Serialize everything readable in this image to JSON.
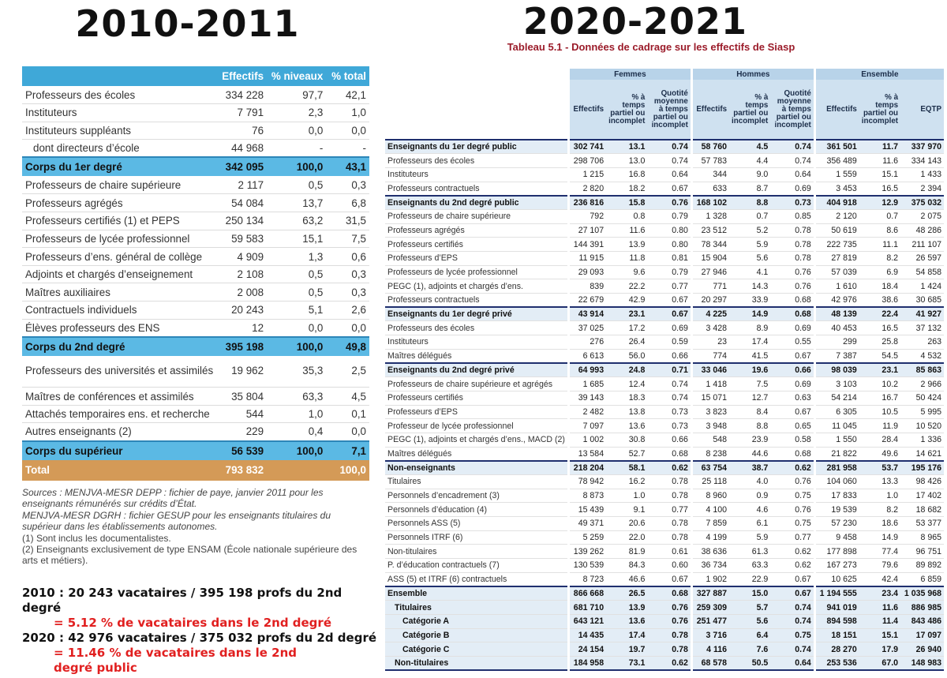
{
  "left": {
    "title": "2010-2011",
    "headers": [
      "",
      "Effectifs",
      "% niveaux",
      "% total"
    ],
    "rows": [
      {
        "label": "Professeurs des écoles",
        "effectifs": "334 228",
        "niveaux": "97,7",
        "total": "42,1",
        "kind": "row"
      },
      {
        "label": "Instituteurs",
        "effectifs": "7 791",
        "niveaux": "2,3",
        "total": "1,0",
        "kind": "row"
      },
      {
        "label": "Instituteurs suppléants",
        "effectifs": "76",
        "niveaux": "0,0",
        "total": "0,0",
        "kind": "row"
      },
      {
        "label": "dont directeurs d’école",
        "effectifs": "44 968",
        "niveaux": "-",
        "total": "-",
        "kind": "indent"
      },
      {
        "label": "Corps du 1er degré",
        "effectifs": "342 095",
        "niveaux": "100,0",
        "total": "43,1",
        "kind": "corps"
      },
      {
        "label": "Professeurs de chaire supérieure",
        "effectifs": "2 117",
        "niveaux": "0,5",
        "total": "0,3",
        "kind": "row"
      },
      {
        "label": "Professeurs agrégés",
        "effectifs": "54 084",
        "niveaux": "13,7",
        "total": "6,8",
        "kind": "row"
      },
      {
        "label": "Professeurs certifiés (1) et PEPS",
        "effectifs": "250 134",
        "niveaux": "63,2",
        "total": "31,5",
        "kind": "row"
      },
      {
        "label": "Professeurs de lycée professionnel",
        "effectifs": "59 583",
        "niveaux": "15,1",
        "total": "7,5",
        "kind": "row"
      },
      {
        "label": "Professeurs d’ens. général de collège",
        "effectifs": "4 909",
        "niveaux": "1,3",
        "total": "0,6",
        "kind": "row"
      },
      {
        "label": "Adjoints et chargés d’enseignement",
        "effectifs": "2 108",
        "niveaux": "0,5",
        "total": "0,3",
        "kind": "row"
      },
      {
        "label": "Maîtres auxiliaires",
        "effectifs": "2 008",
        "niveaux": "0,5",
        "total": "0,3",
        "kind": "row"
      },
      {
        "label": "Contractuels individuels",
        "effectifs": "20 243",
        "niveaux": "5,1",
        "total": "2,6",
        "kind": "row"
      },
      {
        "label": "Élèves professeurs des ENS",
        "effectifs": "12",
        "niveaux": "0,0",
        "total": "0,0",
        "kind": "row"
      },
      {
        "label": "Corps du 2nd degré",
        "effectifs": "395 198",
        "niveaux": "100,0",
        "total": "49,8",
        "kind": "corps"
      },
      {
        "label": "Professeurs des universités et assimilés",
        "effectifs": "19 962",
        "niveaux": "35,3",
        "total": "2,5",
        "kind": "tall"
      },
      {
        "label": "Maîtres de conférences et assimilés",
        "effectifs": "35 804",
        "niveaux": "63,3",
        "total": "4,5",
        "kind": "row"
      },
      {
        "label": "Attachés temporaires ens. et recherche",
        "effectifs": "544",
        "niveaux": "1,0",
        "total": "0,1",
        "kind": "row"
      },
      {
        "label": "Autres enseignants (2)",
        "effectifs": "229",
        "niveaux": "0,4",
        "total": "0,0",
        "kind": "row"
      },
      {
        "label": "Corps du supérieur",
        "effectifs": "56 539",
        "niveaux": "100,0",
        "total": "7,1",
        "kind": "corps"
      },
      {
        "label": "Total",
        "effectifs": "793 832",
        "niveaux": "",
        "total": "100,0",
        "kind": "total"
      }
    ],
    "notes": [
      {
        "text": "Sources : MENJVA-MESR DEPP : fichier de paye, janvier 2011 pour les enseignants rémunérés sur crédits d’État.",
        "italic": true
      },
      {
        "text": "MENJVA-MESR DGRH : fichier GESUP pour les enseignants titulaires du supérieur dans les établissements autonomes.",
        "italic": true
      },
      {
        "text": "(1) Sont inclus les documentalistes.",
        "italic": false
      },
      {
        "text": "(2) Enseignants exclusivement de type ENSAM (École nationale supérieure des arts et métiers).",
        "italic": false
      }
    ]
  },
  "calc": {
    "line1": "2010 : 20 243 vacataires / 395 198 profs du 2nd degré",
    "line2": "= 5.12 % de vacataires dans le 2nd degré",
    "line3": "2020 : 42 976 vacataires / 375 032 profs du 2d degré",
    "line4": "= 11.46 % de vacataires dans le 2nd",
    "line5": "degré public"
  },
  "right": {
    "title": "2020-2021",
    "caption": "Tableau 5.1 - Données de cadrage sur les effectifs de Siasp",
    "groups": [
      "Femmes",
      "Hommes",
      "Ensemble"
    ],
    "subheaders": [
      "Effectifs",
      "% à temps partiel ou incomplet",
      "Quotité moyenne à temps partiel ou incomplet",
      "Effectifs",
      "% à temps partiel ou incomplet",
      "Quotité moyenne à temps partiel ou incomplet",
      "Effectifs",
      "% à temps partiel ou incomplet",
      "EQTP"
    ],
    "rows": [
      {
        "label": "Enseignants du 1er degré public",
        "v": [
          "302 741",
          "13.1",
          "0.74",
          "58 760",
          "4.5",
          "0.74",
          "361 501",
          "11.7",
          "337 970"
        ],
        "kind": "sec"
      },
      {
        "label": "Professeurs des écoles",
        "v": [
          "298 706",
          "13.0",
          "0.74",
          "57 783",
          "4.4",
          "0.74",
          "356 489",
          "11.6",
          "334 143"
        ],
        "kind": "row"
      },
      {
        "label": "Instituteurs",
        "v": [
          "1 215",
          "16.8",
          "0.64",
          "344",
          "9.0",
          "0.64",
          "1 559",
          "15.1",
          "1 433"
        ],
        "kind": "row"
      },
      {
        "label": "Professeurs contractuels",
        "v": [
          "2 820",
          "18.2",
          "0.67",
          "633",
          "8.7",
          "0.69",
          "3 453",
          "16.5",
          "2 394"
        ],
        "kind": "row"
      },
      {
        "label": "Enseignants du 2nd degré public",
        "v": [
          "236 816",
          "15.8",
          "0.76",
          "168 102",
          "8.8",
          "0.73",
          "404 918",
          "12.9",
          "375 032"
        ],
        "kind": "sec"
      },
      {
        "label": "Professeurs de chaire supérieure",
        "v": [
          "792",
          "0.8",
          "0.79",
          "1 328",
          "0.7",
          "0.85",
          "2 120",
          "0.7",
          "2 075"
        ],
        "kind": "row"
      },
      {
        "label": "Professeurs agrégés",
        "v": [
          "27 107",
          "11.6",
          "0.80",
          "23 512",
          "5.2",
          "0.78",
          "50 619",
          "8.6",
          "48 286"
        ],
        "kind": "row"
      },
      {
        "label": "Professeurs certifiés",
        "v": [
          "144 391",
          "13.9",
          "0.80",
          "78 344",
          "5.9",
          "0.78",
          "222 735",
          "11.1",
          "211 107"
        ],
        "kind": "row"
      },
      {
        "label": "Professeurs d’EPS",
        "v": [
          "11 915",
          "11.8",
          "0.81",
          "15 904",
          "5.6",
          "0.78",
          "27 819",
          "8.2",
          "26 597"
        ],
        "kind": "row"
      },
      {
        "label": "Professeurs de lycée professionnel",
        "v": [
          "29 093",
          "9.6",
          "0.79",
          "27 946",
          "4.1",
          "0.76",
          "57 039",
          "6.9",
          "54 858"
        ],
        "kind": "row"
      },
      {
        "label": "PEGC (1), adjoints et chargés d’ens.",
        "v": [
          "839",
          "22.2",
          "0.77",
          "771",
          "14.3",
          "0.76",
          "1 610",
          "18.4",
          "1 424"
        ],
        "kind": "row"
      },
      {
        "label": "Professeurs contractuels",
        "v": [
          "22 679",
          "42.9",
          "0.67",
          "20 297",
          "33.9",
          "0.68",
          "42 976",
          "38.6",
          "30 685"
        ],
        "kind": "row"
      },
      {
        "label": "Enseignants du 1er degré privé",
        "v": [
          "43 914",
          "23.1",
          "0.67",
          "4 225",
          "14.9",
          "0.68",
          "48 139",
          "22.4",
          "41 927"
        ],
        "kind": "sec"
      },
      {
        "label": "Professeurs des écoles",
        "v": [
          "37 025",
          "17.2",
          "0.69",
          "3 428",
          "8.9",
          "0.69",
          "40 453",
          "16.5",
          "37 132"
        ],
        "kind": "row"
      },
      {
        "label": "Instituteurs",
        "v": [
          "276",
          "26.4",
          "0.59",
          "23",
          "17.4",
          "0.55",
          "299",
          "25.8",
          "263"
        ],
        "kind": "row"
      },
      {
        "label": "Maîtres délégués",
        "v": [
          "6 613",
          "56.0",
          "0.66",
          "774",
          "41.5",
          "0.67",
          "7 387",
          "54.5",
          "4 532"
        ],
        "kind": "row"
      },
      {
        "label": "Enseignants du 2nd degré privé",
        "v": [
          "64 993",
          "24.8",
          "0.71",
          "33 046",
          "19.6",
          "0.66",
          "98 039",
          "23.1",
          "85 863"
        ],
        "kind": "sec"
      },
      {
        "label": "Professeurs de chaire supérieure et agrégés",
        "v": [
          "1 685",
          "12.4",
          "0.74",
          "1 418",
          "7.5",
          "0.69",
          "3 103",
          "10.2",
          "2 966"
        ],
        "kind": "row"
      },
      {
        "label": "Professeurs certifiés",
        "v": [
          "39 143",
          "18.3",
          "0.74",
          "15 071",
          "12.7",
          "0.63",
          "54 214",
          "16.7",
          "50 424"
        ],
        "kind": "row"
      },
      {
        "label": "Professeurs d’EPS",
        "v": [
          "2 482",
          "13.8",
          "0.73",
          "3 823",
          "8.4",
          "0.67",
          "6 305",
          "10.5",
          "5 995"
        ],
        "kind": "row"
      },
      {
        "label": "Professeur de lycée professionnel",
        "v": [
          "7 097",
          "13.6",
          "0.73",
          "3 948",
          "8.8",
          "0.65",
          "11 045",
          "11.9",
          "10 520"
        ],
        "kind": "row"
      },
      {
        "label": "PEGC (1), adjoints et chargés d’ens., MACD (2)",
        "v": [
          "1 002",
          "30.8",
          "0.66",
          "548",
          "23.9",
          "0.58",
          "1 550",
          "28.4",
          "1 336"
        ],
        "kind": "row"
      },
      {
        "label": "Maîtres délégués",
        "v": [
          "13 584",
          "52.7",
          "0.68",
          "8 238",
          "44.6",
          "0.68",
          "21 822",
          "49.6",
          "14 621"
        ],
        "kind": "row"
      },
      {
        "label": "Non-enseignants",
        "v": [
          "218 204",
          "58.1",
          "0.62",
          "63 754",
          "38.7",
          "0.62",
          "281 958",
          "53.7",
          "195 176"
        ],
        "kind": "sec"
      },
      {
        "label": "Titulaires",
        "v": [
          "78 942",
          "16.2",
          "0.78",
          "25 118",
          "4.0",
          "0.76",
          "104 060",
          "13.3",
          "98 426"
        ],
        "kind": "row"
      },
      {
        "label": "Personnels d’encadrement (3)",
        "v": [
          "8 873",
          "1.0",
          "0.78",
          "8 960",
          "0.9",
          "0.75",
          "17 833",
          "1.0",
          "17 402"
        ],
        "kind": "row"
      },
      {
        "label": "Personnels d’éducation (4)",
        "v": [
          "15 439",
          "9.1",
          "0.77",
          "4 100",
          "4.6",
          "0.76",
          "19 539",
          "8.2",
          "18 682"
        ],
        "kind": "row"
      },
      {
        "label": "Personnels ASS (5)",
        "v": [
          "49 371",
          "20.6",
          "0.78",
          "7 859",
          "6.1",
          "0.75",
          "57 230",
          "18.6",
          "53 377"
        ],
        "kind": "row"
      },
      {
        "label": "Personnels ITRF (6)",
        "v": [
          "5 259",
          "22.0",
          "0.78",
          "4 199",
          "5.9",
          "0.77",
          "9 458",
          "14.9",
          "8 965"
        ],
        "kind": "row"
      },
      {
        "label": "Non-titulaires",
        "v": [
          "139 262",
          "81.9",
          "0.61",
          "38 636",
          "61.3",
          "0.62",
          "177 898",
          "77.4",
          "96 751"
        ],
        "kind": "row"
      },
      {
        "label": "P. d’éducation contractuels (7)",
        "v": [
          "130 539",
          "84.3",
          "0.60",
          "36 734",
          "63.3",
          "0.62",
          "167 273",
          "79.6",
          "89 892"
        ],
        "kind": "row"
      },
      {
        "label": "ASS (5) et ITRF (6) contractuels",
        "v": [
          "8 723",
          "46.6",
          "0.67",
          "1 902",
          "22.9",
          "0.67",
          "10 625",
          "42.4",
          "6 859"
        ],
        "kind": "row"
      },
      {
        "label": "Ensemble",
        "v": [
          "866 668",
          "26.5",
          "0.68",
          "327 887",
          "15.0",
          "0.67",
          "1 194 555",
          "23.4",
          "1 035 968"
        ],
        "kind": "tot0"
      },
      {
        "label": "Titulaires",
        "v": [
          "681 710",
          "13.9",
          "0.76",
          "259 309",
          "5.7",
          "0.74",
          "941 019",
          "11.6",
          "886 985"
        ],
        "kind": "tot1"
      },
      {
        "label": "Catégorie A",
        "v": [
          "643 121",
          "13.6",
          "0.76",
          "251 477",
          "5.6",
          "0.74",
          "894 598",
          "11.4",
          "843 486"
        ],
        "kind": "tot2"
      },
      {
        "label": "Catégorie B",
        "v": [
          "14 435",
          "17.4",
          "0.78",
          "3 716",
          "6.4",
          "0.75",
          "18 151",
          "15.1",
          "17 097"
        ],
        "kind": "tot2"
      },
      {
        "label": "Catégorie C",
        "v": [
          "24 154",
          "19.7",
          "0.78",
          "4 116",
          "7.6",
          "0.74",
          "28 270",
          "17.9",
          "26 940"
        ],
        "kind": "tot2"
      },
      {
        "label": "Non-titulaires",
        "v": [
          "184 958",
          "73.1",
          "0.62",
          "68 578",
          "50.5",
          "0.64",
          "253 536",
          "67.0",
          "148 983"
        ],
        "kind": "tot1"
      }
    ]
  }
}
